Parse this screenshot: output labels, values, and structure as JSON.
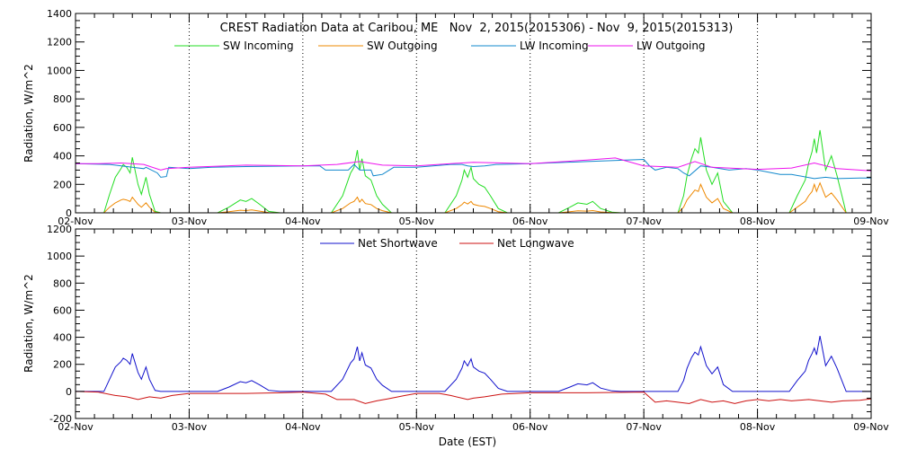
{
  "colors": {
    "background": "#ffffff",
    "axis": "#000000",
    "sw_in": "#22dd22",
    "sw_out": "#ee8800",
    "lw_in": "#1188cc",
    "lw_out": "#ee11ee",
    "net_sw": "#1111cc",
    "net_lw": "#cc1111"
  },
  "chart_data": [
    {
      "type": "line",
      "title": "CREST Radiation Data at Caribou, ME   Nov  2, 2015(2015306) - Nov  9, 2015(2015313)",
      "ylabel": "Radiation, W/m^2",
      "xlabel": "",
      "xlim": [
        "02-Nov",
        "09-Nov"
      ],
      "ylim": [
        0,
        1400
      ],
      "yticks": [
        "0",
        "200",
        "400",
        "600",
        "800",
        "1000",
        "1200",
        "1400"
      ],
      "xticks": [
        "02-Nov",
        "03-Nov",
        "04-Nov",
        "05-Nov",
        "06-Nov",
        "07-Nov",
        "08-Nov",
        "09-Nov"
      ],
      "grid": "dotted vertical at day boundaries",
      "legend": "top",
      "series": [
        {
          "name": "SW Incoming",
          "color_key": "sw_in",
          "days_since_start": [
            0.0,
            0.25,
            0.3,
            0.35,
            0.4,
            0.42,
            0.45,
            0.48,
            0.5,
            0.55,
            0.58,
            0.62,
            0.65,
            0.7,
            0.75,
            0.8,
            1.0,
            1.25,
            1.35,
            1.45,
            1.5,
            1.55,
            1.62,
            1.7,
            1.8,
            2.0,
            2.25,
            2.35,
            2.42,
            2.45,
            2.48,
            2.5,
            2.52,
            2.55,
            2.6,
            2.65,
            2.7,
            2.78,
            3.0,
            3.25,
            3.35,
            3.4,
            3.42,
            3.45,
            3.48,
            3.5,
            3.55,
            3.6,
            3.65,
            3.72,
            3.8,
            4.0,
            4.25,
            4.35,
            4.42,
            4.5,
            4.55,
            4.62,
            4.72,
            4.8,
            5.0,
            5.3,
            5.35,
            5.38,
            5.42,
            5.45,
            5.48,
            5.5,
            5.55,
            5.6,
            5.65,
            5.7,
            5.78,
            6.0,
            6.28,
            6.35,
            6.42,
            6.45,
            6.48,
            6.5,
            6.52,
            6.55,
            6.6,
            6.65,
            6.7,
            6.78,
            7.0
          ],
          "values": [
            0,
            0,
            130,
            250,
            310,
            340,
            320,
            280,
            390,
            200,
            130,
            250,
            130,
            10,
            0,
            0,
            0,
            0,
            40,
            90,
            80,
            100,
            60,
            10,
            0,
            0,
            0,
            120,
            280,
            320,
            440,
            300,
            380,
            260,
            230,
            120,
            60,
            0,
            0,
            0,
            120,
            230,
            300,
            250,
            320,
            240,
            200,
            180,
            120,
            30,
            0,
            0,
            0,
            40,
            70,
            60,
            80,
            30,
            5,
            0,
            0,
            0,
            120,
            260,
            380,
            450,
            420,
            530,
            300,
            200,
            280,
            80,
            0,
            0,
            0,
            120,
            230,
            350,
            430,
            520,
            420,
            580,
            300,
            400,
            260,
            0,
            0
          ]
        },
        {
          "name": "SW Outgoing",
          "color_key": "sw_out",
          "days_since_start": [
            0.0,
            0.25,
            0.3,
            0.35,
            0.4,
            0.42,
            0.45,
            0.48,
            0.5,
            0.55,
            0.58,
            0.62,
            0.65,
            0.7,
            0.75,
            0.8,
            1.0,
            1.25,
            1.35,
            1.45,
            1.5,
            1.55,
            1.62,
            1.7,
            1.8,
            2.0,
            2.25,
            2.35,
            2.42,
            2.45,
            2.48,
            2.5,
            2.52,
            2.55,
            2.6,
            2.65,
            2.7,
            2.78,
            3.0,
            3.25,
            3.35,
            3.4,
            3.42,
            3.45,
            3.48,
            3.5,
            3.55,
            3.6,
            3.65,
            3.72,
            3.8,
            4.0,
            4.25,
            4.35,
            4.42,
            4.5,
            4.55,
            4.62,
            4.72,
            4.8,
            5.0,
            5.3,
            5.35,
            5.38,
            5.42,
            5.45,
            5.48,
            5.5,
            5.55,
            5.6,
            5.65,
            5.7,
            5.78,
            6.0,
            6.28,
            6.35,
            6.42,
            6.45,
            6.48,
            6.5,
            6.52,
            6.55,
            6.6,
            6.65,
            6.7,
            6.78,
            7.0
          ],
          "values": [
            0,
            0,
            40,
            70,
            90,
            95,
            90,
            80,
            110,
            60,
            40,
            70,
            40,
            3,
            0,
            0,
            0,
            0,
            8,
            18,
            16,
            20,
            12,
            2,
            0,
            0,
            0,
            30,
            70,
            80,
            110,
            75,
            95,
            65,
            58,
            30,
            15,
            0,
            0,
            0,
            30,
            58,
            75,
            62,
            80,
            60,
            50,
            45,
            30,
            8,
            0,
            0,
            0,
            8,
            14,
            12,
            16,
            6,
            1,
            0,
            0,
            0,
            40,
            90,
            130,
            160,
            150,
            200,
            110,
            70,
            100,
            30,
            0,
            0,
            0,
            40,
            80,
            120,
            150,
            200,
            150,
            210,
            110,
            140,
            90,
            0,
            0
          ]
        },
        {
          "name": "LW Incoming",
          "color_key": "lw_in",
          "days_since_start": [
            0.0,
            0.3,
            0.5,
            0.6,
            0.62,
            0.72,
            0.75,
            0.8,
            0.82,
            1.0,
            1.2,
            1.5,
            2.0,
            2.15,
            2.2,
            2.4,
            2.45,
            2.5,
            2.6,
            2.62,
            2.7,
            2.8,
            2.9,
            3.0,
            3.3,
            3.4,
            3.45,
            3.5,
            3.6,
            3.7,
            3.72,
            4.0,
            4.5,
            5.0,
            5.05,
            5.1,
            5.2,
            5.3,
            5.35,
            5.4,
            5.5,
            5.6,
            5.75,
            5.9,
            6.0,
            6.2,
            6.3,
            6.5,
            6.6,
            6.7,
            6.9,
            7.0
          ],
          "values": [
            345,
            340,
            320,
            310,
            320,
            280,
            250,
            255,
            320,
            310,
            320,
            325,
            330,
            330,
            300,
            300,
            340,
            300,
            300,
            260,
            270,
            320,
            320,
            320,
            340,
            340,
            330,
            325,
            330,
            340,
            340,
            345,
            360,
            375,
            330,
            300,
            320,
            310,
            280,
            260,
            330,
            320,
            300,
            310,
            300,
            270,
            270,
            240,
            250,
            240,
            245,
            245
          ]
        },
        {
          "name": "LW Outgoing",
          "color_key": "lw_out",
          "days_since_start": [
            0.0,
            0.2,
            0.4,
            0.6,
            0.75,
            0.8,
            1.0,
            1.5,
            2.0,
            2.3,
            2.5,
            2.7,
            3.0,
            3.5,
            4.0,
            4.5,
            4.75,
            5.0,
            5.3,
            5.45,
            5.6,
            6.0,
            6.3,
            6.5,
            6.7,
            7.0
          ],
          "values": [
            345,
            345,
            350,
            340,
            300,
            310,
            320,
            335,
            330,
            340,
            360,
            335,
            330,
            355,
            345,
            370,
            385,
            330,
            320,
            360,
            320,
            305,
            315,
            350,
            310,
            295
          ]
        }
      ]
    },
    {
      "type": "line",
      "title": "",
      "ylabel": "Radiation, W/m^2",
      "xlabel": "Date (EST)",
      "xlim": [
        "02-Nov",
        "09-Nov"
      ],
      "ylim": [
        -200,
        1200
      ],
      "yticks": [
        "-200",
        "0",
        "200",
        "400",
        "600",
        "800",
        "1000",
        "1200"
      ],
      "xticks": [
        "02-Nov",
        "03-Nov",
        "04-Nov",
        "05-Nov",
        "06-Nov",
        "07-Nov",
        "08-Nov",
        "09-Nov"
      ],
      "grid": "dotted vertical at day boundaries",
      "legend": "top",
      "series": [
        {
          "name": "Net Shortwave",
          "color_key": "net_sw",
          "days_since_start": [
            0.0,
            0.25,
            0.3,
            0.35,
            0.4,
            0.42,
            0.45,
            0.48,
            0.5,
            0.55,
            0.58,
            0.62,
            0.65,
            0.7,
            0.75,
            0.8,
            1.0,
            1.25,
            1.35,
            1.45,
            1.5,
            1.55,
            1.62,
            1.7,
            1.8,
            2.0,
            2.25,
            2.35,
            2.42,
            2.45,
            2.48,
            2.5,
            2.52,
            2.55,
            2.6,
            2.65,
            2.7,
            2.78,
            3.0,
            3.25,
            3.35,
            3.4,
            3.42,
            3.45,
            3.48,
            3.5,
            3.55,
            3.6,
            3.65,
            3.72,
            3.8,
            4.0,
            4.25,
            4.35,
            4.42,
            4.5,
            4.55,
            4.62,
            4.72,
            4.8,
            5.0,
            5.3,
            5.35,
            5.38,
            5.42,
            5.45,
            5.48,
            5.5,
            5.55,
            5.6,
            5.65,
            5.7,
            5.78,
            6.0,
            6.28,
            6.35,
            6.42,
            6.45,
            6.48,
            6.5,
            6.52,
            6.55,
            6.6,
            6.65,
            6.7,
            6.78,
            7.0
          ],
          "values": [
            0,
            0,
            90,
            180,
            220,
            245,
            230,
            200,
            280,
            140,
            90,
            180,
            90,
            7,
            0,
            0,
            0,
            0,
            32,
            72,
            64,
            80,
            48,
            8,
            0,
            0,
            0,
            90,
            210,
            240,
            330,
            225,
            285,
            195,
            172,
            90,
            45,
            0,
            0,
            0,
            90,
            172,
            225,
            188,
            240,
            180,
            150,
            135,
            90,
            22,
            0,
            0,
            0,
            32,
            56,
            48,
            64,
            24,
            4,
            0,
            0,
            0,
            80,
            170,
            250,
            290,
            270,
            330,
            190,
            130,
            180,
            50,
            0,
            0,
            0,
            80,
            150,
            230,
            280,
            320,
            270,
            410,
            190,
            260,
            170,
            0,
            0
          ]
        },
        {
          "name": "Net Longwave",
          "color_key": "net_lw",
          "days_since_start": [
            0.0,
            0.2,
            0.35,
            0.45,
            0.55,
            0.65,
            0.75,
            0.85,
            1.0,
            1.3,
            1.5,
            1.8,
            2.0,
            2.2,
            2.3,
            2.45,
            2.55,
            2.65,
            2.75,
            2.9,
            3.0,
            3.2,
            3.3,
            3.45,
            3.5,
            3.6,
            3.75,
            4.0,
            4.5,
            5.0,
            5.1,
            5.2,
            5.3,
            5.4,
            5.5,
            5.6,
            5.7,
            5.8,
            5.9,
            6.0,
            6.1,
            6.2,
            6.3,
            6.45,
            6.55,
            6.65,
            6.75,
            6.9,
            7.0
          ],
          "values": [
            0,
            -5,
            -30,
            -40,
            -60,
            -40,
            -50,
            -30,
            -15,
            -15,
            -15,
            -10,
            -5,
            -20,
            -60,
            -60,
            -90,
            -70,
            -55,
            -30,
            -15,
            -15,
            -30,
            -60,
            -50,
            -40,
            -20,
            -10,
            -10,
            -5,
            -80,
            -70,
            -80,
            -90,
            -60,
            -80,
            -70,
            -90,
            -70,
            -60,
            -70,
            -60,
            -70,
            -60,
            -70,
            -80,
            -70,
            -65,
            -55
          ]
        }
      ]
    }
  ]
}
